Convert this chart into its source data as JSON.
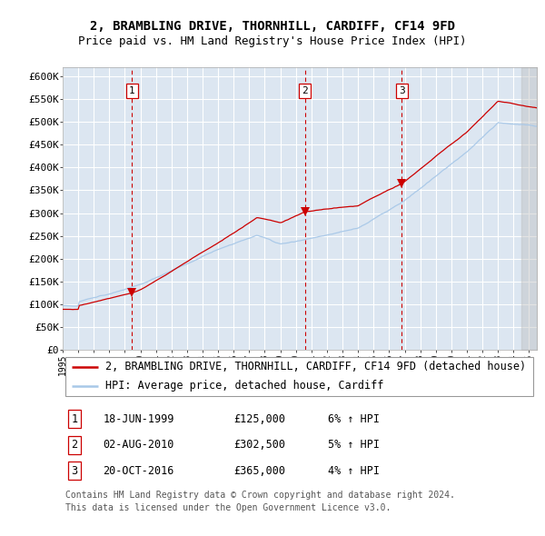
{
  "title": "2, BRAMBLING DRIVE, THORNHILL, CARDIFF, CF14 9FD",
  "subtitle": "Price paid vs. HM Land Registry's House Price Index (HPI)",
  "ylim": [
    0,
    620000
  ],
  "yticks": [
    0,
    50000,
    100000,
    150000,
    200000,
    250000,
    300000,
    350000,
    400000,
    450000,
    500000,
    550000,
    600000
  ],
  "ytick_labels": [
    "£0",
    "£50K",
    "£100K",
    "£150K",
    "£200K",
    "£250K",
    "£300K",
    "£350K",
    "£400K",
    "£450K",
    "£500K",
    "£550K",
    "£600K"
  ],
  "plot_bg_color": "#dce6f1",
  "grid_color": "#ffffff",
  "hpi_line_color": "#a8c8e8",
  "price_line_color": "#cc0000",
  "sale_marker_color": "#cc0000",
  "dashed_line_color": "#cc0000",
  "sale1_year": 1999.46,
  "sale1_price": 125000,
  "sale2_year": 2010.58,
  "sale2_price": 302500,
  "sale3_year": 2016.8,
  "sale3_price": 365000,
  "legend_address": "2, BRAMBLING DRIVE, THORNHILL, CARDIFF, CF14 9FD (detached house)",
  "legend_hpi": "HPI: Average price, detached house, Cardiff",
  "table_data": [
    [
      "1",
      "18-JUN-1999",
      "£125,000",
      "6% ↑ HPI"
    ],
    [
      "2",
      "02-AUG-2010",
      "£302,500",
      "5% ↑ HPI"
    ],
    [
      "3",
      "20-OCT-2016",
      "£365,000",
      "4% ↑ HPI"
    ]
  ],
  "footer": "Contains HM Land Registry data © Crown copyright and database right 2024.\nThis data is licensed under the Open Government Licence v3.0.",
  "title_fontsize": 10,
  "subtitle_fontsize": 9,
  "tick_fontsize": 8,
  "legend_fontsize": 8.5,
  "table_fontsize": 8.5,
  "footer_fontsize": 7
}
